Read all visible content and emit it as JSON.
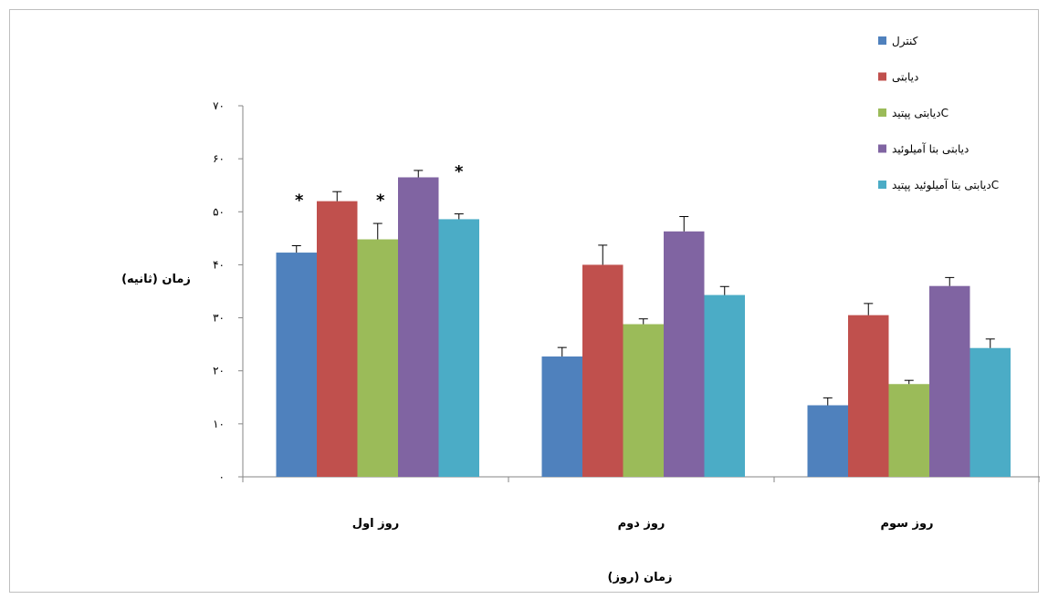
{
  "chart_data": {
    "type": "bar",
    "title": "",
    "xlabel": "زمان (روز)",
    "ylabel": "زمان (ثانیه)",
    "ylim": [
      0,
      70
    ],
    "yticks": [
      "۰",
      "۱۰",
      "۲۰",
      "۳۰",
      "۴۰",
      "۵۰",
      "۶۰",
      "۷۰"
    ],
    "grid": false,
    "legend_position": "top-right",
    "categories": [
      "روز اول",
      "روز دوم",
      "روز سوم"
    ],
    "series": [
      {
        "name": "کنترل",
        "color": "#4f81bd",
        "values": [
          42.3,
          22.7,
          13.5
        ],
        "errors": [
          1.3,
          1.7,
          1.4
        ]
      },
      {
        "name": "دیابتی",
        "color": "#c0504d",
        "values": [
          52.0,
          40.0,
          30.5
        ],
        "errors": [
          1.8,
          3.7,
          2.2
        ]
      },
      {
        "name": "دیابتی پپتیدC",
        "color": "#9bbb59",
        "values": [
          44.8,
          28.8,
          17.5
        ],
        "errors": [
          3.0,
          1.0,
          0.7
        ]
      },
      {
        "name": "دیابتی بتا آمیلوئید",
        "color": "#8064a2",
        "values": [
          56.5,
          46.3,
          36.0
        ],
        "errors": [
          1.3,
          2.8,
          1.6
        ]
      },
      {
        "name": "دیابتی بتا آمیلوئید پپتیدC",
        "color": "#4bacc6",
        "values": [
          48.6,
          34.3,
          24.3
        ],
        "errors": [
          1.0,
          1.6,
          1.7
        ]
      }
    ],
    "significance_markers": [
      "*",
      "*",
      "*",
      "*"
    ]
  }
}
